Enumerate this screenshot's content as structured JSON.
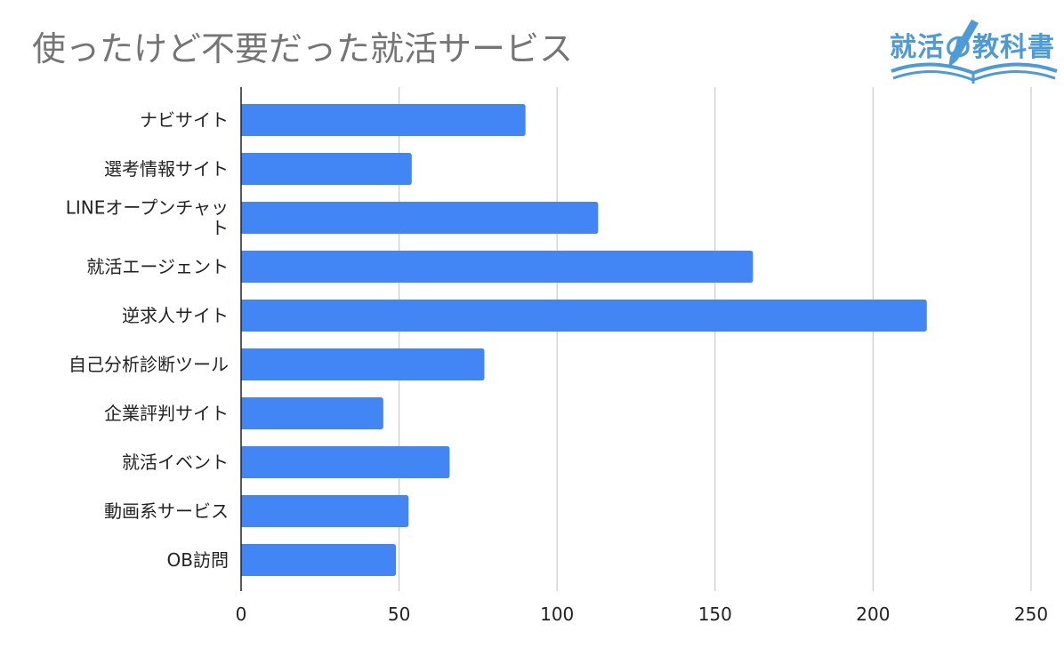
{
  "chart_data": {
    "type": "bar",
    "orientation": "horizontal",
    "title": "使ったけど不要だった就活サービス",
    "categories": [
      "ナビサイト",
      "選考情報サイト",
      "LINEオープンチャット",
      "就活エージェント",
      "逆求人サイト",
      "自己分析診断ツール",
      "企業評判サイト",
      "就活イベント",
      "動画系サービス",
      "OB訪問"
    ],
    "category_display_lines": [
      [
        "ナビサイト"
      ],
      [
        "選考情報サイト"
      ],
      [
        "LINEオープンチャッ",
        "ト"
      ],
      [
        "就活エージェント"
      ],
      [
        "逆求人サイト"
      ],
      [
        "自己分析診断ツール"
      ],
      [
        "企業評判サイト"
      ],
      [
        "就活イベント"
      ],
      [
        "動画系サービス"
      ],
      [
        "OB訪問"
      ]
    ],
    "values": [
      90,
      54,
      113,
      162,
      217,
      77,
      45,
      66,
      53,
      49
    ],
    "xlim": [
      0,
      250
    ],
    "x_ticks": [
      "0",
      "50",
      "100",
      "150",
      "200",
      "250"
    ],
    "x_tick_values": [
      0,
      50,
      100,
      150,
      200,
      250
    ],
    "grid": true,
    "legend": "none",
    "colors": {
      "bar": "#4285f4",
      "grid": "#cccccc",
      "axis": "#222222",
      "title": "#757575"
    }
  },
  "logo": {
    "text": "就活の教科書",
    "color": "#4d9ad8"
  }
}
